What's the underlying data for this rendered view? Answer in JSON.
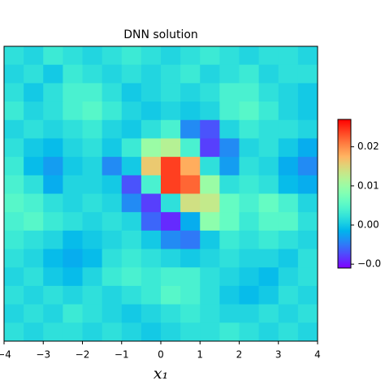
{
  "chart_data": {
    "type": "heatmap",
    "title": "DNN solution",
    "xlabel": "x₁",
    "colormap": "rainbow",
    "xlim": [
      -4,
      4
    ],
    "xticks": [
      {
        "value": -4,
        "label": "−4"
      },
      {
        "value": -3,
        "label": "−3"
      },
      {
        "value": -2,
        "label": "−2"
      },
      {
        "value": -1,
        "label": "−1"
      },
      0,
      1,
      2,
      3,
      4
    ],
    "clim": [
      -0.011,
      0.027
    ],
    "cticks": [
      0.02,
      0.01,
      {
        "value": 0,
        "label": "0.00"
      },
      {
        "value": -0.01,
        "label": "−0.0"
      }
    ],
    "z": [
      [
        0.002,
        0.001,
        0.003,
        0.002,
        0.001,
        0.002,
        0.003,
        0.002,
        0.001,
        0.002,
        0.003,
        0.002,
        0.001,
        0.002,
        0.002,
        0.001
      ],
      [
        0.001,
        0.002,
        0.0,
        0.003,
        0.002,
        0.001,
        0.002,
        0.001,
        0.002,
        0.003,
        0.001,
        0.002,
        0.003,
        0.001,
        0.002,
        0.002
      ],
      [
        0.002,
        0.0,
        0.002,
        0.004,
        0.004,
        0.002,
        0.0,
        0.001,
        0.002,
        0.001,
        0.002,
        0.004,
        0.004,
        0.002,
        0.001,
        0.0
      ],
      [
        0.003,
        0.001,
        0.002,
        0.004,
        0.005,
        0.003,
        0.001,
        0.0,
        0.001,
        0.0,
        0.001,
        0.004,
        0.005,
        0.003,
        0.001,
        0.0
      ],
      [
        0.001,
        0.002,
        0.001,
        0.002,
        0.003,
        0.001,
        0.0,
        0.002,
        0.004,
        -0.004,
        -0.007,
        0.001,
        0.003,
        0.002,
        0.002,
        0.001
      ],
      [
        0.002,
        0.0,
        -0.001,
        0.001,
        0.002,
        0.0,
        0.003,
        0.01,
        0.012,
        0.004,
        -0.008,
        -0.004,
        0.001,
        0.002,
        0.0,
        -0.002
      ],
      [
        0.003,
        -0.001,
        -0.003,
        0.0,
        0.001,
        -0.004,
        0.0,
        0.016,
        0.024,
        0.018,
        0.002,
        -0.003,
        0.002,
        0.001,
        -0.002,
        -0.004
      ],
      [
        0.004,
        0.002,
        -0.002,
        0.001,
        0.001,
        0.0,
        -0.007,
        0.004,
        0.024,
        0.022,
        0.01,
        0.002,
        0.003,
        0.002,
        -0.001,
        -0.002
      ],
      [
        0.005,
        0.004,
        0.002,
        0.001,
        0.002,
        0.001,
        -0.004,
        -0.008,
        0.002,
        0.014,
        0.013,
        0.006,
        0.004,
        0.006,
        0.004,
        0.001
      ],
      [
        0.004,
        0.005,
        0.003,
        0.002,
        0.001,
        0.002,
        0.001,
        -0.006,
        -0.009,
        -0.002,
        0.009,
        0.006,
        0.003,
        0.005,
        0.005,
        0.002
      ],
      [
        0.003,
        0.002,
        0.001,
        -0.001,
        0.0,
        0.001,
        0.002,
        0.0,
        -0.004,
        -0.005,
        0.0,
        0.003,
        0.002,
        0.003,
        0.002,
        0.001
      ],
      [
        0.002,
        0.001,
        -0.001,
        -0.002,
        -0.001,
        0.002,
        0.003,
        0.002,
        0.001,
        0.0,
        0.001,
        0.002,
        0.001,
        0.001,
        0.0,
        0.002
      ],
      [
        0.001,
        0.002,
        0.0,
        -0.001,
        0.001,
        0.003,
        0.004,
        0.003,
        0.004,
        0.004,
        0.002,
        0.001,
        0.0,
        -0.001,
        0.001,
        0.002
      ],
      [
        0.002,
        0.001,
        0.002,
        0.001,
        0.002,
        0.001,
        0.002,
        0.003,
        0.005,
        0.004,
        0.002,
        0.0,
        -0.001,
        0.0,
        0.002,
        0.001
      ],
      [
        0.001,
        0.002,
        0.001,
        0.003,
        0.002,
        0.001,
        0.0,
        0.001,
        0.002,
        0.003,
        0.002,
        0.001,
        0.001,
        0.002,
        0.001,
        0.002
      ],
      [
        0.002,
        0.001,
        0.002,
        0.002,
        0.001,
        0.002,
        0.001,
        0.0,
        0.001,
        0.002,
        0.002,
        0.003,
        0.002,
        0.001,
        0.002,
        0.001
      ]
    ]
  }
}
